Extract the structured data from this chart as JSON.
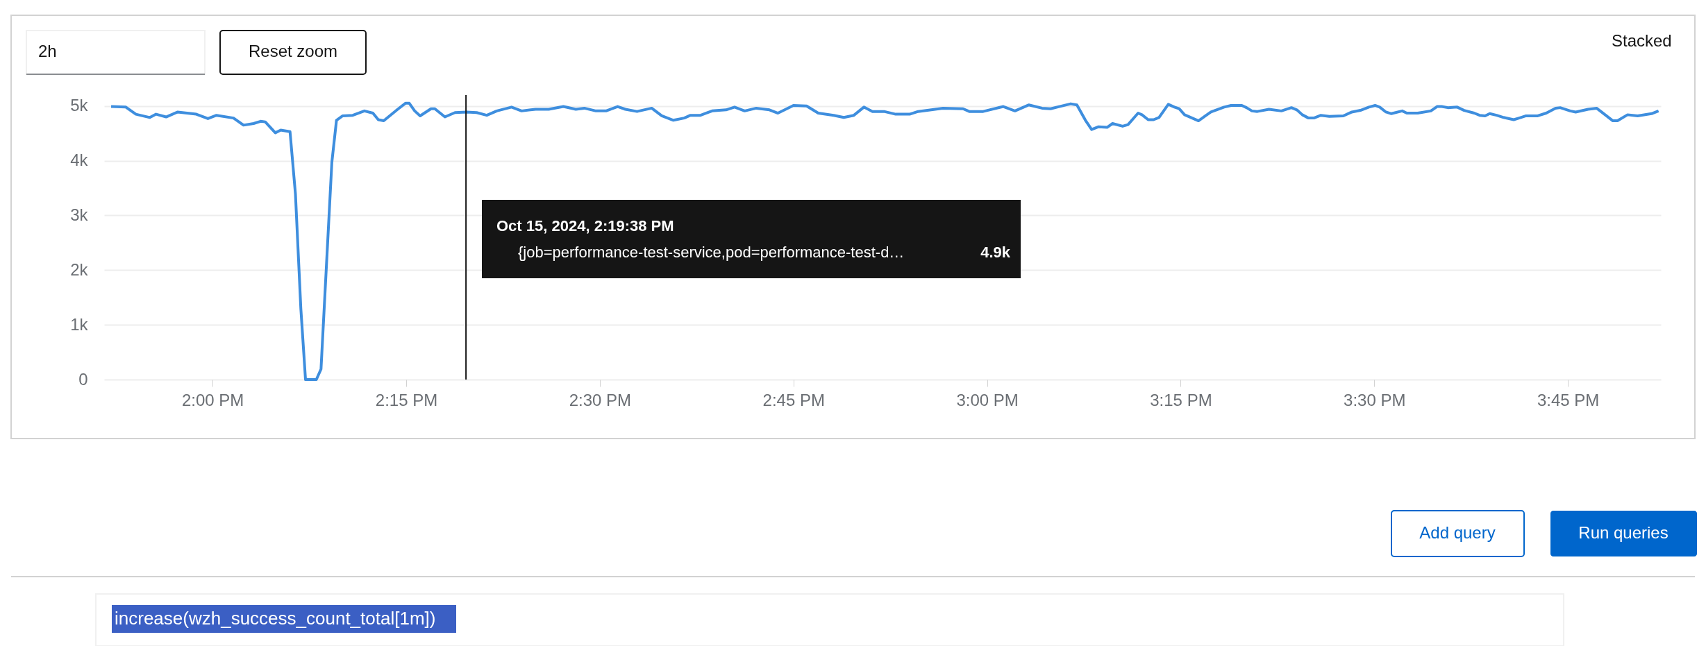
{
  "chart_data": {
    "type": "line",
    "x": [
      13.869,
      13.888,
      13.901,
      13.919,
      13.927,
      13.94,
      13.955,
      13.979,
      13.994,
      14.005,
      14.027,
      14.04,
      14.053,
      14.062,
      14.068,
      14.081,
      14.088,
      14.1,
      14.107,
      14.114,
      14.12,
      14.134,
      14.14,
      14.154,
      14.16,
      14.168,
      14.181,
      14.196,
      14.207,
      14.214,
      14.221,
      14.239,
      14.249,
      14.254,
      14.261,
      14.268,
      14.282,
      14.287,
      14.3,
      14.313,
      14.328,
      14.341,
      14.354,
      14.367,
      14.386,
      14.399,
      14.417,
      14.434,
      14.453,
      14.469,
      14.48,
      14.495,
      14.508,
      14.523,
      14.533,
      14.548,
      14.567,
      14.58,
      14.595,
      14.609,
      14.617,
      14.63,
      14.645,
      14.663,
      14.674,
      14.687,
      14.702,
      14.719,
      14.73,
      14.75,
      14.767,
      14.782,
      14.802,
      14.815,
      14.828,
      14.841,
      14.852,
      14.867,
      14.882,
      14.9,
      14.911,
      14.928,
      14.943,
      14.969,
      14.977,
      14.995,
      15.021,
      15.036,
      15.054,
      15.071,
      15.082,
      15.108,
      15.116,
      15.127,
      15.135,
      15.144,
      15.155,
      15.162,
      15.175,
      15.182,
      15.195,
      15.2,
      15.208,
      15.215,
      15.222,
      15.234,
      15.242,
      15.248,
      15.255,
      15.273,
      15.282,
      15.289,
      15.306,
      15.315,
      15.329,
      15.335,
      15.342,
      15.349,
      15.364,
      15.38,
      15.393,
      15.4,
      15.407,
      15.415,
      15.422,
      15.431,
      15.442,
      15.46,
      15.471,
      15.482,
      15.493,
      15.501,
      15.507,
      15.515,
      15.522,
      15.536,
      15.542,
      15.556,
      15.573,
      15.581,
      15.587,
      15.595,
      15.607,
      15.616,
      15.629,
      15.636,
      15.643,
      15.649,
      15.658,
      15.667,
      15.68,
      15.687,
      15.696,
      15.711,
      15.722,
      15.734,
      15.74,
      15.753,
      15.76,
      15.776,
      15.787,
      15.798,
      15.808,
      15.814,
      15.827,
      15.84,
      15.858,
      15.867
    ],
    "series": [
      {
        "color": "#3e8ede",
        "values": [
          4990,
          4980,
          4850,
          4790,
          4850,
          4800,
          4890,
          4850,
          4770,
          4830,
          4780,
          4650,
          4680,
          4720,
          4710,
          4510,
          4560,
          4530,
          3390,
          1290,
          0,
          0,
          190,
          3970,
          4740,
          4820,
          4830,
          4910,
          4870,
          4750,
          4730,
          4940,
          5050,
          5050,
          4910,
          4820,
          4950,
          4950,
          4800,
          4880,
          4890,
          4880,
          4830,
          4910,
          4980,
          4910,
          4940,
          4940,
          4990,
          4940,
          4960,
          4910,
          4910,
          4990,
          4940,
          4900,
          4960,
          4820,
          4740,
          4780,
          4830,
          4830,
          4910,
          4930,
          4980,
          4910,
          4960,
          4930,
          4870,
          5010,
          5000,
          4870,
          4830,
          4790,
          4830,
          4980,
          4900,
          4900,
          4850,
          4850,
          4900,
          4930,
          4960,
          4950,
          4900,
          4900,
          4990,
          4910,
          5020,
          4960,
          4950,
          5040,
          5020,
          4740,
          4570,
          4620,
          4610,
          4680,
          4630,
          4660,
          4870,
          4840,
          4750,
          4750,
          4790,
          5030,
          4980,
          4950,
          4840,
          4730,
          4820,
          4890,
          4980,
          5010,
          5010,
          4970,
          4910,
          4900,
          4940,
          4910,
          4970,
          4930,
          4840,
          4780,
          4780,
          4830,
          4810,
          4820,
          4890,
          4920,
          4980,
          5010,
          4980,
          4890,
          4860,
          4910,
          4870,
          4870,
          4910,
          4990,
          4990,
          4970,
          4980,
          4920,
          4870,
          4830,
          4820,
          4860,
          4830,
          4790,
          4750,
          4780,
          4820,
          4820,
          4870,
          4960,
          4970,
          4910,
          4890,
          4940,
          4960,
          4840,
          4730,
          4730,
          4840,
          4820,
          4860,
          4910
        ]
      }
    ],
    "xlim": [
      13.86,
      15.87
    ],
    "xticks": [
      {
        "value": 14,
        "label": "2:00 PM"
      },
      {
        "value": 14.25,
        "label": "2:15 PM"
      },
      {
        "value": 14.5,
        "label": "2:30 PM"
      },
      {
        "value": 14.75,
        "label": "2:45 PM"
      },
      {
        "value": 15,
        "label": "3:00 PM"
      },
      {
        "value": 15.25,
        "label": "3:15 PM"
      },
      {
        "value": 15.5,
        "label": "3:30 PM"
      },
      {
        "value": 15.75,
        "label": "3:45 PM"
      }
    ],
    "ylim": [
      0,
      5200
    ],
    "yticks": [
      0,
      {
        "value": 1000,
        "label": "1k"
      },
      {
        "value": 2000,
        "label": "2k"
      },
      {
        "value": 3000,
        "label": "3k"
      },
      {
        "value": 4000,
        "label": "4k"
      },
      {
        "value": 5000,
        "label": "5k"
      }
    ],
    "grid": "y",
    "ref_lines": [
      {
        "axis": "x",
        "value": 14.3272,
        "color": "#151515"
      }
    ],
    "annotations": [
      "2h",
      "Reset zoom",
      "Stacked",
      "Oct 15, 2024, 2:19:38 PM",
      "{job=performance-test-service,pod=performance-test-d…",
      "4.9k",
      "Add query",
      "Run queries",
      "increase(wzh_success_count_total[1m])"
    ]
  }
}
